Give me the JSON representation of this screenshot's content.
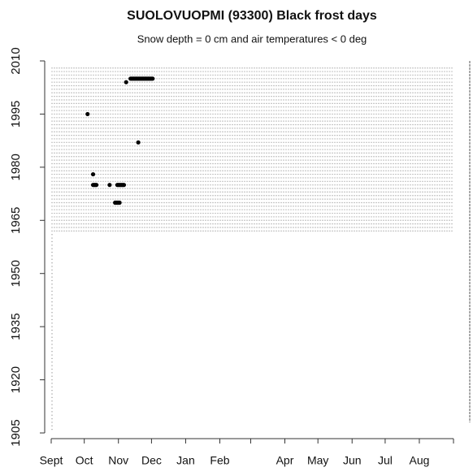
{
  "chart_data": {
    "type": "scatter",
    "title": "SUOLOVUOPMI (93300) Black frost days",
    "subtitle": "Snow depth = 0 cm and air temperatures < 0 deg",
    "xlim": [
      0,
      365
    ],
    "ylim": [
      1905,
      2010
    ],
    "xticks": [
      {
        "value": 0,
        "label": "Sept"
      },
      {
        "value": 30,
        "label": "Oct"
      },
      {
        "value": 61,
        "label": "Nov"
      },
      {
        "value": 91,
        "label": "Dec"
      },
      {
        "value": 122,
        "label": "Jan"
      },
      {
        "value": 153,
        "label": "Feb"
      },
      {
        "value": 181,
        "label": null
      },
      {
        "value": 212,
        "label": "Apr"
      },
      {
        "value": 242,
        "label": "May"
      },
      {
        "value": 273,
        "label": "Jun"
      },
      {
        "value": 303,
        "label": "Jul"
      },
      {
        "value": 334,
        "label": "Aug"
      },
      {
        "value": 365,
        "label": null
      }
    ],
    "yticks": [
      1905,
      1920,
      1935,
      1950,
      1965,
      1980,
      1995,
      2010
    ],
    "background": [
      {
        "color": "#c0c0c0",
        "years": [
          1906,
          1961
        ],
        "days": [
          0,
          2
        ]
      },
      {
        "color": "#c8c8c8",
        "years": [
          1962,
          2008
        ],
        "days": [
          0,
          365
        ]
      }
    ],
    "series": [
      {
        "color": "#000000",
        "x": [
          68,
          72,
          73,
          74,
          75,
          76,
          77,
          78,
          79,
          80,
          81,
          82,
          83,
          84,
          85,
          86,
          87,
          88,
          89,
          90,
          91,
          92,
          33,
          79,
          38,
          38,
          39,
          40,
          41,
          53,
          60,
          61,
          62,
          63,
          64,
          65,
          66,
          58,
          59,
          60,
          61,
          62
        ],
        "values": [
          2004,
          2005,
          2005,
          2005,
          2005,
          2005,
          2005,
          2005,
          2005,
          2005,
          2005,
          2005,
          2005,
          2005,
          2005,
          2005,
          2005,
          2005,
          2005,
          2005,
          2005,
          2005,
          1995,
          1987,
          1978,
          1975,
          1975,
          1975,
          1975,
          1975,
          1975,
          1975,
          1975,
          1975,
          1975,
          1975,
          1975,
          1970,
          1970,
          1970,
          1970,
          1970
        ]
      }
    ]
  }
}
